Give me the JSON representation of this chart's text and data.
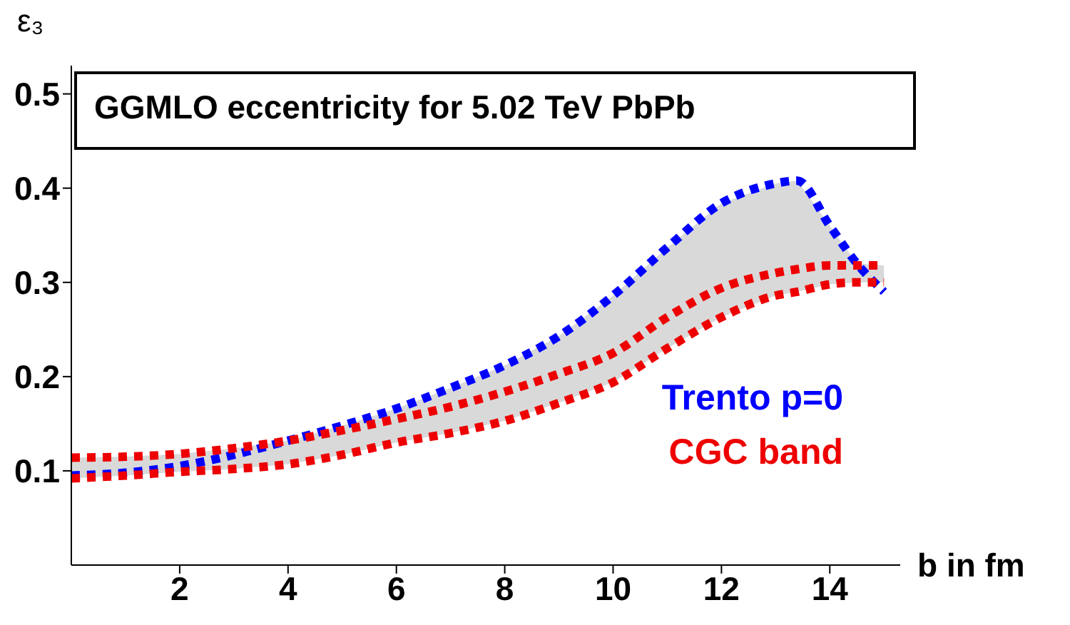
{
  "chart_data": {
    "type": "line",
    "title": "GGMLO eccentricity for 5.02 TeV PbPb",
    "xlabel": "b in fm",
    "ylabel": "ε₃",
    "x": [
      0,
      1,
      2,
      3,
      4,
      5,
      6,
      7,
      8,
      9,
      10,
      11,
      12,
      13,
      13.4,
      14,
      14.5,
      15
    ],
    "series": [
      {
        "name": "Trento p=0",
        "color": "#0000ff",
        "values": [
          0.095,
          0.098,
          0.105,
          0.117,
          0.132,
          0.148,
          0.166,
          0.188,
          0.212,
          0.243,
          0.286,
          0.337,
          0.384,
          0.405,
          0.408,
          0.36,
          0.32,
          0.29
        ],
        "lower": [
          0.092,
          0.095,
          0.099,
          0.102,
          0.107,
          0.117,
          0.13,
          0.14,
          0.153,
          0.172,
          0.194,
          0.23,
          0.263,
          0.286,
          0.29,
          0.298,
          0.3,
          0.3
        ],
        "upper": [
          0.114,
          0.115,
          0.118,
          0.124,
          0.132,
          0.148,
          0.166,
          0.188,
          0.212,
          0.243,
          0.286,
          0.337,
          0.384,
          0.405,
          0.408,
          0.36,
          0.32,
          0.318
        ]
      },
      {
        "name": "CGC band",
        "color": "#ee0000",
        "values": [
          0.114,
          0.115,
          0.118,
          0.124,
          0.132,
          0.143,
          0.155,
          0.168,
          0.184,
          0.203,
          0.225,
          0.263,
          0.294,
          0.31,
          0.314,
          0.318,
          0.318,
          0.318
        ]
      },
      {
        "color": "#ee0000",
        "values": [
          0.092,
          0.095,
          0.099,
          0.102,
          0.107,
          0.117,
          0.13,
          0.14,
          0.153,
          0.172,
          0.194,
          0.23,
          0.263,
          0.286,
          0.29,
          0.298,
          0.3,
          0.3
        ]
      }
    ],
    "xlim": [
      0,
      15.3
    ],
    "ylim": [
      0,
      0.53
    ],
    "xticks": [
      2,
      4,
      6,
      8,
      10,
      12,
      14
    ],
    "yticks": [
      0.1,
      0.2,
      0.3,
      0.4,
      0.5
    ],
    "grid": false,
    "legend": "bottom right",
    "line_style": "dotted",
    "marker": "none"
  }
}
